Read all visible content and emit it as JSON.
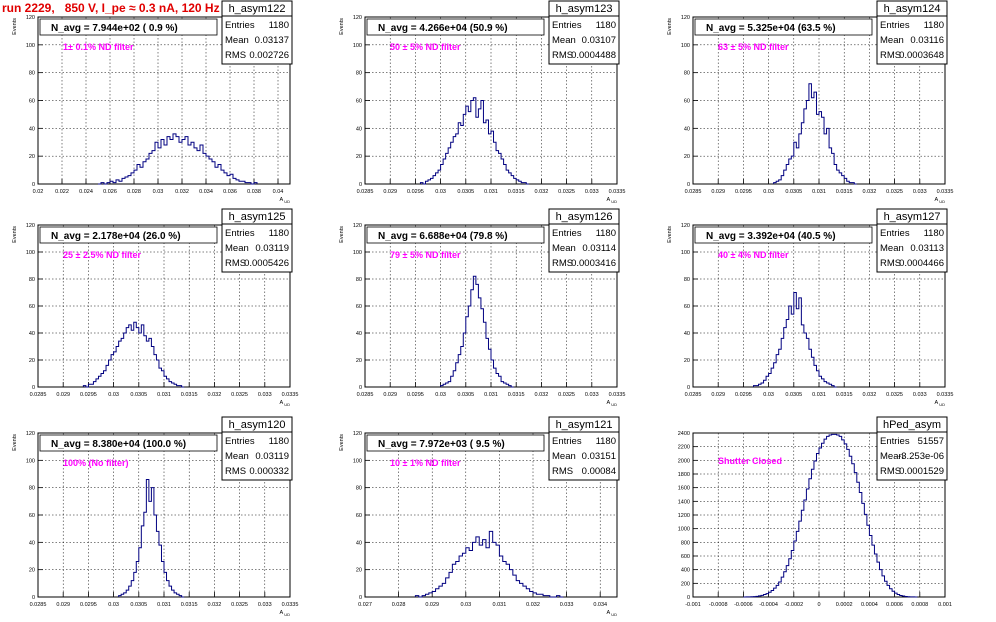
{
  "title": "run 2229,   850 V, I_pe ≈ 0.3 nA, 120 Hz",
  "colors": {
    "hist": "#000080",
    "note": "#ff00ff",
    "title": "#e00000",
    "grid": "#000000"
  },
  "stats_labels": {
    "entries": "Entries",
    "mean": "Mean",
    "rms": "RMS"
  },
  "chart_data": [
    {
      "type": "bar",
      "name": "h_asym122",
      "nav": "N_avg = 7.944e+02 ( 0.9 %)",
      "note": "1± 0.1% ND filter",
      "ylabel": "Events",
      "xlabel": "A_UD",
      "entries": "1180",
      "mean": "0.03137",
      "rms": "0.002726",
      "xlim": [
        0.02,
        0.041
      ],
      "ylim": [
        0,
        120
      ],
      "xticks": [
        "0.02",
        "0.022",
        "0.024",
        "0.026",
        "0.028",
        "0.03",
        "0.032",
        "0.034",
        "0.036",
        "0.038",
        "0.04"
      ],
      "yticks": [
        "0",
        "20",
        "40",
        "60",
        "80",
        "100",
        "120"
      ],
      "bin_start": 0.025,
      "bin_width": 0.00025,
      "counts": [
        0,
        1,
        0,
        1,
        2,
        1,
        3,
        2,
        4,
        5,
        6,
        8,
        10,
        14,
        12,
        16,
        18,
        22,
        24,
        30,
        26,
        32,
        28,
        34,
        32,
        36,
        34,
        30,
        32,
        34,
        28,
        30,
        26,
        24,
        28,
        22,
        20,
        18,
        16,
        12,
        14,
        10,
        8,
        6,
        7,
        4,
        3,
        2,
        2,
        1,
        1,
        0,
        1
      ]
    },
    {
      "type": "bar",
      "name": "h_asym123",
      "nav": "N_avg = 4.266e+04 (50.9 %)",
      "note": "50 ± 5% ND filter",
      "ylabel": "Events",
      "xlabel": "A_UD",
      "entries": "1180",
      "mean": "0.03107",
      "rms": "0.0004488",
      "xlim": [
        0.0285,
        0.0335
      ],
      "ylim": [
        0,
        120
      ],
      "xticks": [
        "0.0285",
        "0.029",
        "0.0295",
        "0.03",
        "0.0305",
        "0.031",
        "0.0315",
        "0.032",
        "0.0325",
        "0.033",
        "0.0335"
      ],
      "yticks": [
        "0",
        "20",
        "40",
        "60",
        "80",
        "100",
        "120"
      ],
      "bin_start": 0.0296,
      "bin_width": 5e-05,
      "counts": [
        1,
        0,
        2,
        3,
        4,
        6,
        8,
        10,
        14,
        18,
        22,
        26,
        30,
        34,
        36,
        44,
        42,
        50,
        56,
        52,
        60,
        62,
        48,
        54,
        60,
        44,
        46,
        36,
        38,
        30,
        24,
        22,
        18,
        14,
        10,
        8,
        6,
        4,
        3,
        2,
        1,
        1,
        0
      ]
    },
    {
      "type": "bar",
      "name": "h_asym124",
      "nav": "N_avg = 5.325e+04 (63.5 %)",
      "note": "63 ± 5% ND filter",
      "ylabel": "Events",
      "xlabel": "A_UD",
      "entries": "1180",
      "mean": "0.03116",
      "rms": "0.0003648",
      "xlim": [
        0.0285,
        0.0335
      ],
      "ylim": [
        0,
        120
      ],
      "xticks": [
        "0.0285",
        "0.029",
        "0.0295",
        "0.03",
        "0.0305",
        "0.031",
        "0.0315",
        "0.032",
        "0.0325",
        "0.033",
        "0.0335"
      ],
      "yticks": [
        "0",
        "20",
        "40",
        "60",
        "80",
        "100",
        "120"
      ],
      "bin_start": 0.0301,
      "bin_width": 5e-05,
      "counts": [
        1,
        2,
        3,
        6,
        10,
        14,
        18,
        20,
        30,
        26,
        36,
        44,
        54,
        60,
        72,
        62,
        66,
        50,
        52,
        48,
        36,
        40,
        26,
        22,
        14,
        10,
        8,
        6,
        4,
        2,
        1,
        1,
        0
      ]
    },
    {
      "type": "bar",
      "name": "h_asym125",
      "nav": "N_avg = 2.178e+04 (26.0 %)",
      "note": "25 ± 2.5% ND filter",
      "ylabel": "Events",
      "xlabel": "A_UD",
      "entries": "1180",
      "mean": "0.03119",
      "rms": "0.0005426",
      "xlim": [
        0.0285,
        0.0335
      ],
      "ylim": [
        0,
        120
      ],
      "xticks": [
        "0.0285",
        "0.029",
        "0.0295",
        "0.03",
        "0.0305",
        "0.031",
        "0.0315",
        "0.032",
        "0.0325",
        "0.033",
        "0.0335"
      ],
      "yticks": [
        "0",
        "20",
        "40",
        "60",
        "80",
        "100",
        "120"
      ],
      "bin_start": 0.0294,
      "bin_width": 5e-05,
      "counts": [
        1,
        0,
        2,
        2,
        4,
        6,
        8,
        10,
        12,
        16,
        20,
        24,
        26,
        30,
        34,
        36,
        40,
        44,
        46,
        42,
        48,
        44,
        40,
        46,
        38,
        34,
        36,
        30,
        24,
        20,
        14,
        12,
        8,
        6,
        4,
        3,
        2,
        1,
        1,
        0
      ]
    },
    {
      "type": "bar",
      "name": "h_asym126",
      "nav": "N_avg = 6.688e+04 (79.8 %)",
      "note": "79 ± 5% ND filter",
      "ylabel": "Events",
      "xlabel": "A_UD",
      "entries": "1180",
      "mean": "0.03114",
      "rms": "0.0003416",
      "xlim": [
        0.0285,
        0.0335
      ],
      "ylim": [
        0,
        120
      ],
      "xticks": [
        "0.0285",
        "0.029",
        "0.0295",
        "0.03",
        "0.0305",
        "0.031",
        "0.0315",
        "0.032",
        "0.0325",
        "0.033",
        "0.0335"
      ],
      "yticks": [
        "0",
        "20",
        "40",
        "60",
        "80",
        "100",
        "120"
      ],
      "bin_start": 0.03,
      "bin_width": 5e-05,
      "counts": [
        1,
        2,
        3,
        4,
        8,
        12,
        18,
        24,
        30,
        40,
        52,
        60,
        72,
        82,
        76,
        66,
        58,
        48,
        36,
        28,
        20,
        14,
        10,
        8,
        4,
        3,
        2,
        1,
        0
      ]
    },
    {
      "type": "bar",
      "name": "h_asym127",
      "nav": "N_avg = 3.392e+04 (40.5 %)",
      "note": "40 ± 4% ND filter",
      "ylabel": "Events",
      "xlabel": "A_UD",
      "entries": "1180",
      "mean": "0.03113",
      "rms": "0.0004466",
      "xlim": [
        0.0285,
        0.0335
      ],
      "ylim": [
        0,
        120
      ],
      "xticks": [
        "0.0285",
        "0.029",
        "0.0295",
        "0.03",
        "0.0305",
        "0.031",
        "0.0315",
        "0.032",
        "0.0325",
        "0.033",
        "0.0335"
      ],
      "yticks": [
        "0",
        "20",
        "40",
        "60",
        "80",
        "100",
        "120"
      ],
      "bin_start": 0.0297,
      "bin_width": 5e-05,
      "counts": [
        1,
        1,
        2,
        3,
        5,
        8,
        10,
        14,
        18,
        24,
        28,
        36,
        44,
        50,
        60,
        54,
        70,
        58,
        66,
        46,
        40,
        36,
        28,
        22,
        16,
        12,
        8,
        6,
        4,
        3,
        2,
        1,
        0
      ]
    },
    {
      "type": "bar",
      "name": "h_asym120",
      "nav": "N_avg = 8.380e+04 (100.0 %)",
      "note": "100% (No filter)",
      "ylabel": "Events",
      "xlabel": "A_UD",
      "entries": "1180",
      "mean": "0.03119",
      "rms": "0.000332",
      "xlim": [
        0.0285,
        0.0335
      ],
      "ylim": [
        0,
        120
      ],
      "xticks": [
        "0.0285",
        "0.029",
        "0.0295",
        "0.03",
        "0.0305",
        "0.031",
        "0.0315",
        "0.032",
        "0.0325",
        "0.033",
        "0.0335"
      ],
      "yticks": [
        "0",
        "20",
        "40",
        "60",
        "80",
        "100",
        "120"
      ],
      "bin_start": 0.0301,
      "bin_width": 5e-05,
      "counts": [
        1,
        2,
        3,
        5,
        8,
        12,
        18,
        26,
        36,
        52,
        62,
        86,
        70,
        80,
        60,
        48,
        38,
        26,
        18,
        12,
        8,
        5,
        3,
        2,
        1,
        0
      ]
    },
    {
      "type": "bar",
      "name": "h_asym121",
      "nav": "N_avg = 7.972e+03 ( 9.5 %)",
      "note": "10 ± 1% ND filter",
      "ylabel": "Events",
      "xlabel": "A_UD",
      "entries": "1180",
      "mean": "0.03151",
      "rms": "0.00084",
      "xlim": [
        0.027,
        0.0345
      ],
      "ylim": [
        0,
        120
      ],
      "xticks": [
        "0.027",
        "0.028",
        "0.029",
        "0.03",
        "0.031",
        "0.032",
        "0.033",
        "0.034"
      ],
      "yticks": [
        "0",
        "20",
        "40",
        "60",
        "80",
        "100",
        "120"
      ],
      "bin_start": 0.0285,
      "bin_width": 0.0001,
      "counts": [
        1,
        0,
        1,
        2,
        3,
        4,
        6,
        8,
        10,
        14,
        18,
        24,
        26,
        30,
        32,
        36,
        34,
        40,
        44,
        38,
        42,
        36,
        48,
        40,
        38,
        30,
        26,
        24,
        20,
        16,
        12,
        10,
        8,
        6,
        4,
        3,
        2,
        2,
        1,
        1,
        0,
        0,
        1,
        0
      ]
    },
    {
      "type": "bar",
      "name": "hPed_asym",
      "nav": "",
      "note": "Shutter Closed",
      "ylabel": "",
      "xlabel": "",
      "entries": "51557",
      "mean": "-3.253e-06",
      "rms": "0.0001529",
      "xlim": [
        -0.001,
        0.001
      ],
      "ylim": [
        0,
        2400
      ],
      "xticks": [
        "-0.001",
        "-0.0008",
        "-0.0006",
        "-0.0004",
        "-0.0002",
        "0",
        "0.0002",
        "0.0004",
        "0.0006",
        "0.0008",
        "0.001"
      ],
      "yticks": [
        "0",
        "200",
        "400",
        "600",
        "800",
        "1000",
        "1200",
        "1400",
        "1600",
        "1800",
        "2000",
        "2200",
        "2400"
      ],
      "bin_start": -0.0006,
      "bin_width": 2e-05,
      "counts": [
        0,
        1,
        2,
        4,
        6,
        10,
        16,
        24,
        36,
        50,
        70,
        96,
        130,
        170,
        220,
        290,
        370,
        460,
        560,
        680,
        820,
        960,
        1110,
        1270,
        1420,
        1580,
        1730,
        1870,
        1990,
        2100,
        2180,
        2250,
        2310,
        2350,
        2370,
        2380,
        2380,
        2370,
        2350,
        2300,
        2240,
        2160,
        2060,
        1950,
        1820,
        1680,
        1530,
        1370,
        1210,
        1050,
        900,
        760,
        630,
        510,
        400,
        310,
        230,
        170,
        120,
        84,
        56,
        36,
        22,
        14,
        8,
        4,
        2,
        1,
        0
      ]
    }
  ]
}
